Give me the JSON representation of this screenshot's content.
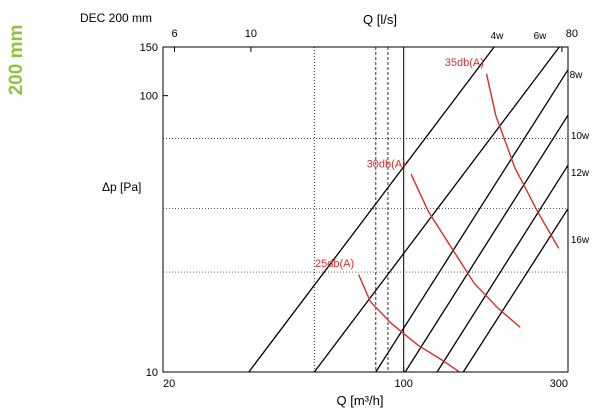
{
  "side_label": "200 mm",
  "chart_data": {
    "type": "line",
    "title": "DEC 200 mm",
    "xlabel": "Q [m³/h]",
    "x2label": "Q [l/s]",
    "ylabel": "Δp [Pa]",
    "xscale": "log",
    "yscale": "log",
    "xlim": [
      20,
      300
    ],
    "ylim": [
      10,
      150
    ],
    "x2lim": [
      5.56,
      83.3
    ],
    "xticks": [
      20,
      100,
      300
    ],
    "yticks": [
      10,
      100,
      150
    ],
    "x2ticks": [
      6,
      10,
      80
    ],
    "grid": "dotted vertical and horizontal reference lines",
    "vlines": [
      {
        "x": 55,
        "style": "dotted"
      },
      {
        "x": 83,
        "style": "dashed"
      },
      {
        "x": 90,
        "style": "dashed"
      },
      {
        "x": 100,
        "style": "solid"
      }
    ],
    "hlines": [
      {
        "y": 70,
        "style": "dotted"
      },
      {
        "y": 39,
        "style": "dotted"
      },
      {
        "y": 23,
        "style": "dotted"
      }
    ],
    "series": [
      {
        "name": "4w",
        "label_q": 80,
        "color": "#000000",
        "points": [
          [
            35.5,
            10
          ],
          [
            183,
            150
          ]
        ]
      },
      {
        "name": "6w",
        "label_q": 80,
        "color": "#000000",
        "points": [
          [
            55,
            10
          ],
          [
            283,
            150
          ]
        ]
      },
      {
        "name": "8w",
        "label_q": 80,
        "color": "#000000",
        "points": [
          [
            83,
            10
          ],
          [
            300,
            124
          ]
        ]
      },
      {
        "name": "10w",
        "label_q": 80,
        "color": "#000000",
        "points": [
          [
            101,
            10
          ],
          [
            300,
            85
          ]
        ]
      },
      {
        "name": "12w",
        "label_q": 80,
        "color": "#000000",
        "points": [
          [
            125,
            10
          ],
          [
            300,
            56
          ]
        ]
      },
      {
        "name": "16w",
        "label_q": 80,
        "color": "#000000",
        "points": [
          [
            149,
            10
          ],
          [
            300,
            39
          ]
        ]
      }
    ],
    "noise_curves": [
      {
        "name": "35db(A)",
        "color": "#d32f2f",
        "points": [
          [
            174,
            120
          ],
          [
            185,
            85
          ],
          [
            210,
            55
          ],
          [
            245,
            38
          ],
          [
            282,
            28
          ]
        ]
      },
      {
        "name": "30db(A)",
        "color": "#d32f2f",
        "points": [
          [
            105,
            52
          ],
          [
            118,
            38
          ],
          [
            138,
            28
          ],
          [
            160,
            21
          ],
          [
            188,
            17
          ],
          [
            218,
            14.5
          ]
        ]
      },
      {
        "name": "25db(A)",
        "color": "#d32f2f",
        "points": [
          [
            74,
            22.5
          ],
          [
            80,
            18
          ],
          [
            92,
            15
          ],
          [
            110,
            12.5
          ],
          [
            130,
            11
          ],
          [
            145,
            10
          ]
        ]
      }
    ],
    "annotations": [
      {
        "text": "35db(A)",
        "q": 150,
        "p": 128,
        "color": "#d32f2f"
      },
      {
        "text": "30db(A)",
        "q": 89,
        "p": 55,
        "color": "#d32f2f"
      },
      {
        "text": "25db(A)",
        "q": 63,
        "p": 24,
        "color": "#d32f2f"
      }
    ]
  }
}
